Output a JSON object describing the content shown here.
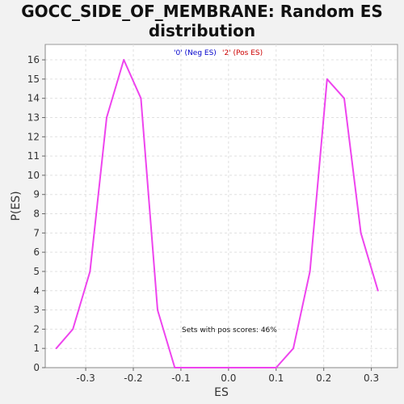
{
  "chart_data": {
    "type": "line",
    "title_line1": "GOCC_SIDE_OF_MEMBRANE: Random ES",
    "title_line2": "distribution",
    "xlabel": "ES",
    "ylabel": "P(ES)",
    "xlim": [
      -0.385,
      0.355
    ],
    "ylim": [
      0,
      16.8
    ],
    "xticks": [
      -0.3,
      -0.2,
      -0.1,
      0.0,
      0.1,
      0.2,
      0.3
    ],
    "xtick_labels": [
      "-0.3",
      "-0.2",
      "-0.1",
      "0.0",
      "0.1",
      "0.2",
      "0.3"
    ],
    "yticks": [
      0,
      1,
      2,
      3,
      4,
      5,
      6,
      7,
      8,
      9,
      10,
      11,
      12,
      13,
      14,
      15,
      16
    ],
    "grid": true,
    "legend": {
      "placement": "top-center",
      "items": [
        {
          "label": "'0' (Neg ES)",
          "color": "#0000cc"
        },
        {
          "label": "'2' (Pos ES)",
          "color": "#cc0000"
        }
      ]
    },
    "annotation": "Sets with pos scores: 46%",
    "series": [
      {
        "color": "#ee44ee",
        "points": [
          [
            -0.362,
            1
          ],
          [
            -0.327,
            2
          ],
          [
            -0.291,
            5
          ],
          [
            -0.256,
            13
          ],
          [
            -0.22,
            16
          ],
          [
            -0.184,
            14
          ],
          [
            -0.149,
            3
          ],
          [
            -0.113,
            0
          ],
          [
            -0.078,
            0
          ],
          [
            -0.042,
            0
          ],
          [
            -0.007,
            0
          ],
          [
            0.029,
            0
          ],
          [
            0.065,
            0
          ],
          [
            0.1,
            0
          ],
          [
            0.136,
            1
          ],
          [
            0.171,
            5
          ],
          [
            0.207,
            15
          ],
          [
            0.243,
            14
          ],
          [
            0.278,
            7
          ],
          [
            0.314,
            4
          ]
        ]
      }
    ]
  }
}
